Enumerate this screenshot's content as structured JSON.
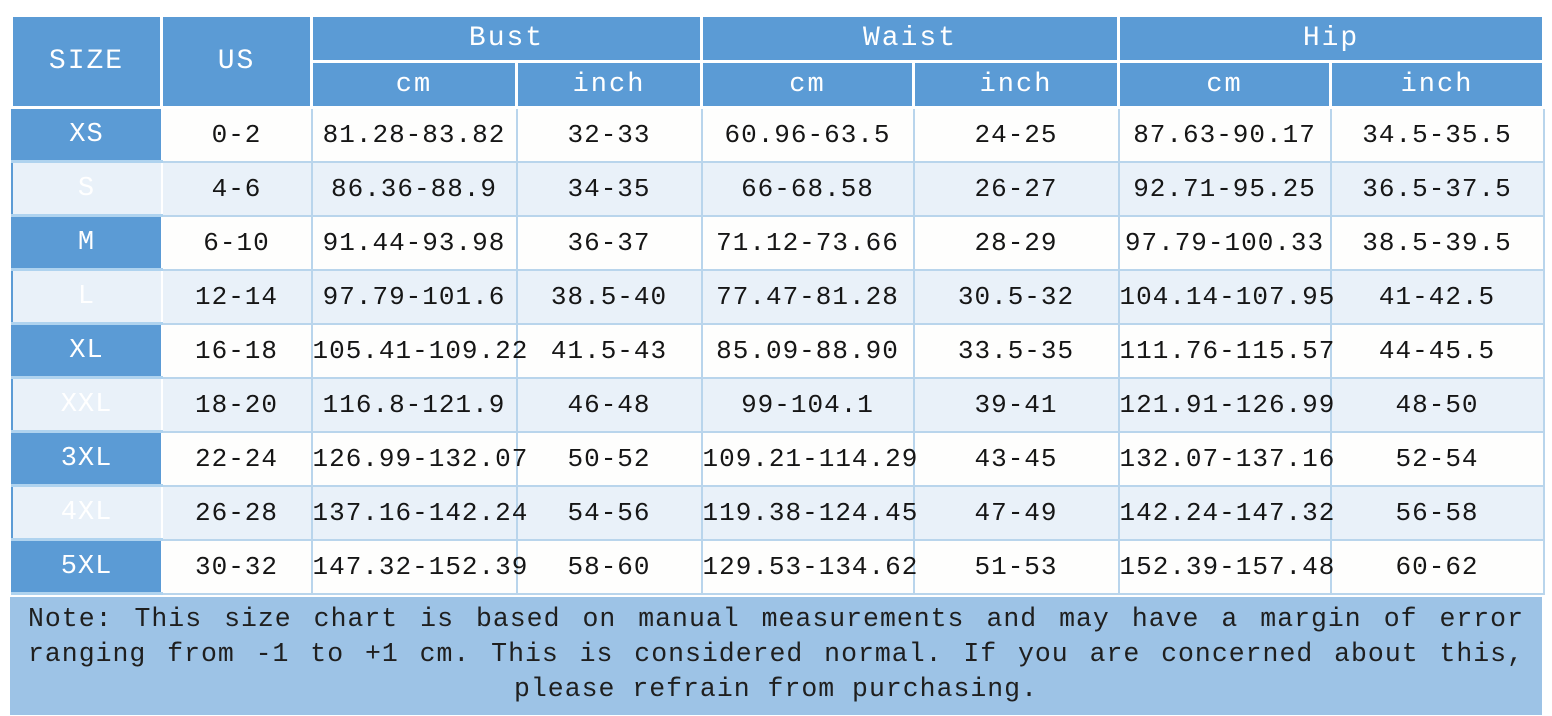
{
  "chart_data": {
    "type": "table",
    "header": {
      "size": "SIZE",
      "us": "US",
      "groups": [
        {
          "label": "Bust",
          "sub_cm": "cm",
          "sub_inch": "inch"
        },
        {
          "label": "Waist",
          "sub_cm": "cm",
          "sub_inch": "inch"
        },
        {
          "label": "Hip",
          "sub_cm": "cm",
          "sub_inch": "inch"
        }
      ]
    },
    "columns": [
      "SIZE",
      "US",
      "Bust cm",
      "Bust inch",
      "Waist cm",
      "Waist inch",
      "Hip cm",
      "Hip inch"
    ],
    "rows": [
      {
        "size": "XS",
        "us": "0-2",
        "values": [
          "81.28-83.82",
          "32-33",
          "60.96-63.5",
          "24-25",
          "87.63-90.17",
          "34.5-35.5"
        ]
      },
      {
        "size": "S",
        "us": "4-6",
        "values": [
          "86.36-88.9",
          "34-35",
          "66-68.58",
          "26-27",
          "92.71-95.25",
          "36.5-37.5"
        ]
      },
      {
        "size": "M",
        "us": "6-10",
        "values": [
          "91.44-93.98",
          "36-37",
          "71.12-73.66",
          "28-29",
          "97.79-100.33",
          "38.5-39.5"
        ]
      },
      {
        "size": "L",
        "us": "12-14",
        "values": [
          "97.79-101.6",
          "38.5-40",
          "77.47-81.28",
          "30.5-32",
          "104.14-107.95",
          "41-42.5"
        ]
      },
      {
        "size": "XL",
        "us": "16-18",
        "values": [
          "105.41-109.22",
          "41.5-43",
          "85.09-88.90",
          "33.5-35",
          "111.76-115.57",
          "44-45.5"
        ]
      },
      {
        "size": "XXL",
        "us": "18-20",
        "values": [
          "116.8-121.9",
          "46-48",
          "99-104.1",
          "39-41",
          "121.91-126.99",
          "48-50"
        ]
      },
      {
        "size": "3XL",
        "us": "22-24",
        "values": [
          "126.99-132.07",
          "50-52",
          "109.21-114.29",
          "43-45",
          "132.07-137.16",
          "52-54"
        ]
      },
      {
        "size": "4XL",
        "us": "26-28",
        "values": [
          "137.16-142.24",
          "54-56",
          "119.38-124.45",
          "47-49",
          "142.24-147.32",
          "56-58"
        ]
      },
      {
        "size": "5XL",
        "us": "30-32",
        "values": [
          "147.32-152.39",
          "58-60",
          "129.53-134.62",
          "51-53",
          "152.39-157.48",
          "60-62"
        ]
      }
    ]
  },
  "note": "Note: This size chart is based on manual measurements and may have a margin of error ranging from -1 to +1 cm. This is considered normal. If you are concerned about this, please refrain from purchasing.",
  "colors": {
    "header_blue": "#5B9BD5",
    "note_blue": "#9DC3E6",
    "row_white": "#FEFEFD",
    "row_alt_blue": "#E9F1F9",
    "grid_border": "#B9D5EC",
    "header_text": "#FFFFFF",
    "cell_text": "#161616"
  }
}
